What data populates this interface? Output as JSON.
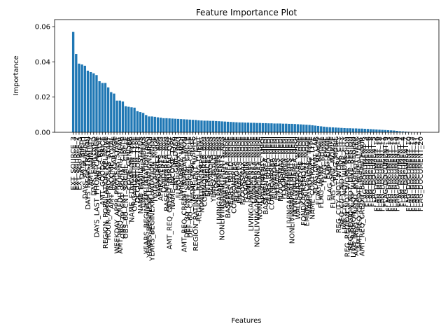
{
  "chart_data": {
    "type": "bar",
    "title": "Feature Importance Plot",
    "x_label": "Features",
    "y_label": "Importance",
    "color": "#1f77b4",
    "ylim": [
      0,
      0.064
    ],
    "yticks": [
      {
        "value": 0,
        "label": "0.00"
      },
      {
        "value": 0.02,
        "label": "0.02"
      },
      {
        "value": 0.04,
        "label": "0.04"
      },
      {
        "value": 0.06,
        "label": "0.06"
      }
    ],
    "categories": [
      "EXT_SOURCE_3",
      "EXT_SOURCE_2",
      "EXT_SOURCE_1",
      "DAYS_BIRTH",
      "DAYS_ID_PUBLISH",
      "DAYS_REGISTRATION",
      "AMT_ANNUITY",
      "DAYS_EMPLOYED",
      "DAYS_LAST_PHONE_CHANGE",
      "AMT_CREDIT",
      "AMT_GOODS_PRICE",
      "REGION_POPULATION_RELATIVE",
      "HOUR_APPR_PROCESS_START",
      "AMT_INCOME_TOTAL",
      "OWN_CAR_AGE",
      "WEEKDAY_APPR_PROCESS_START",
      "AMT_REQ_CREDIT_BUREAU_YEAR",
      "OBS_30_CNT_SOCIAL_CIRCLE",
      "OBS_60_CNT_SOCIAL_CIRCLE",
      "CODE_GENDER",
      "NAME_EDUCATION_TYPE",
      "ORGANIZATION_TYPE",
      "OCCUPATION_TYPE",
      "NAME_FAMILY_STATUS",
      "CNT_FAM_MEMBERS",
      "YEARS_BEGINEXPLUATATION_AVG",
      "YEARS_BEGINEXPLUATATION_MEDI",
      "YEARS_BEGINEXPLUATATION_MODE",
      "TOTALAREA_MODE",
      "LIVINGAREA_AVG",
      "APARTMENTS_AVG",
      "LANDAREA_AVG",
      "BASEMENTAREA_AVG",
      "AMT_REQ_CREDIT_BUREAU_QRT",
      "NAME_INCOME_TYPE",
      "CNT_CHILDREN",
      "FLOORSMAX_AVG",
      "LIVINGAREA_MEDI",
      "AMT_REQ_CREDIT_BUREAU_MON",
      "DEF_30_CNT_SOCIAL_CIRCLE",
      "DEF_60_CNT_SOCIAL_CIRCLE",
      "NAME_TYPE_SUITE",
      "REGION_RATING_CLIENT_W_CITY",
      "REGION_RATING_CLIENT",
      "NONLIVINGAREA_AVG",
      "COMMONAREA_AVG",
      "ENTRANCES_AVG",
      "ELEVATORS_AVG",
      "YEARS_BUILD_AVG",
      "FLOORSMIN_AVG",
      "LIVINGAPARTMENTS_AVG",
      "NONLIVINGAPARTMENTS_AVG",
      "APARTMENTS_MODE",
      "BASEMENTAREA_MODE",
      "YEARS_BUILD_MODE",
      "COMMONAREA_MODE",
      "ELEVATORS_MODE",
      "ENTRANCES_MODE",
      "FLOORSMAX_MODE",
      "FLOORSMIN_MODE",
      "LANDAREA_MODE",
      "LIVINGAPARTMENTS_MODE",
      "LIVINGAREA_MODE",
      "NONLIVINGAPARTMENTS_MODE",
      "NONLIVINGAREA_MODE",
      "APARTMENTS_MEDI",
      "BASEMENTAREA_MEDI",
      "YEARS_BUILD_MEDI",
      "COMMONAREA_MEDI",
      "ELEVATORS_MEDI",
      "ENTRANCES_MEDI",
      "FLOORSMAX_MEDI",
      "FLOORSMIN_MEDI",
      "LANDAREA_MEDI",
      "LIVINGAPARTMENTS_MEDI",
      "NONLIVINGAPARTMENTS_MEDI",
      "NONLIVINGAREA_MEDI",
      "WALLSMATERIAL_MODE",
      "HOUSETYPE_MODE",
      "FONDKAPREMONT_MODE",
      "EMERGENCYSTATE_MODE",
      "NAME_HOUSING_TYPE",
      "NAME_CONTRACT_TYPE",
      "FLAG_OWN_CAR",
      "FLAG_OWN_REALTY",
      "FLAG_WORK_PHONE",
      "FLAG_PHONE",
      "FLAG_EMAIL",
      "FLAG_EMP_PHONE",
      "FLAG_CONT_MOBILE",
      "FLAG_MOBIL",
      "REG_CITY_NOT_WORK_CITY",
      "REG_CITY_NOT_LIVE_CITY",
      "LIVE_CITY_NOT_WORK_CITY",
      "REG_REGION_NOT_WORK_REGION",
      "REG_REGION_NOT_LIVE_REGION",
      "LIVE_REGION_NOT_WORK_REGION",
      "AMT_REQ_CREDIT_BUREAU_WEEK",
      "AMT_REQ_CREDIT_BUREAU_DAY",
      "AMT_REQ_CREDIT_BUREAU_HOUR",
      "FLAG_DOCUMENT_3",
      "FLAG_DOCUMENT_6",
      "FLAG_DOCUMENT_8",
      "FLAG_DOCUMENT_5",
      "FLAG_DOCUMENT_16",
      "FLAG_DOCUMENT_18",
      "FLAG_DOCUMENT_11",
      "FLAG_DOCUMENT_9",
      "FLAG_DOCUMENT_13",
      "FLAG_DOCUMENT_14",
      "FLAG_DOCUMENT_15",
      "FLAG_DOCUMENT_19",
      "FLAG_DOCUMENT_2",
      "FLAG_DOCUMENT_4",
      "FLAG_DOCUMENT_7",
      "FLAG_DOCUMENT_10",
      "FLAG_DOCUMENT_12",
      "FLAG_DOCUMENT_17",
      "FLAG_DOCUMENT_21",
      "FLAG_DOCUMENT_20"
    ],
    "values": [
      0.057,
      0.0445,
      0.039,
      0.0385,
      0.0378,
      0.035,
      0.0342,
      0.0335,
      0.0325,
      0.029,
      0.028,
      0.028,
      0.0255,
      0.0228,
      0.022,
      0.018,
      0.018,
      0.0175,
      0.0148,
      0.0145,
      0.0142,
      0.014,
      0.012,
      0.0115,
      0.011,
      0.0098,
      0.009,
      0.009,
      0.0088,
      0.0085,
      0.0083,
      0.008,
      0.008,
      0.0079,
      0.0078,
      0.0077,
      0.0076,
      0.0075,
      0.0074,
      0.0073,
      0.0072,
      0.0071,
      0.007,
      0.0068,
      0.0067,
      0.0066,
      0.0066,
      0.0065,
      0.0065,
      0.0064,
      0.0063,
      0.0062,
      0.0061,
      0.006,
      0.0059,
      0.0058,
      0.0057,
      0.0056,
      0.0056,
      0.0055,
      0.0055,
      0.0054,
      0.0054,
      0.0053,
      0.0053,
      0.0052,
      0.0052,
      0.0051,
      0.0051,
      0.005,
      0.005,
      0.005,
      0.0049,
      0.0049,
      0.0048,
      0.0048,
      0.0047,
      0.0046,
      0.0045,
      0.0044,
      0.0043,
      0.0042,
      0.004,
      0.0038,
      0.0036,
      0.0034,
      0.0032,
      0.003,
      0.0029,
      0.0028,
      0.0027,
      0.0026,
      0.0025,
      0.0024,
      0.0023,
      0.0023,
      0.0022,
      0.0022,
      0.0021,
      0.0021,
      0.002,
      0.0019,
      0.0018,
      0.0017,
      0.0016,
      0.0015,
      0.0014,
      0.0013,
      0.0012,
      0.0011,
      0.001,
      0.0008,
      0.0006,
      0.0005,
      0.0004,
      0.0003,
      0.0002,
      0.0001,
      0,
      0
    ]
  }
}
